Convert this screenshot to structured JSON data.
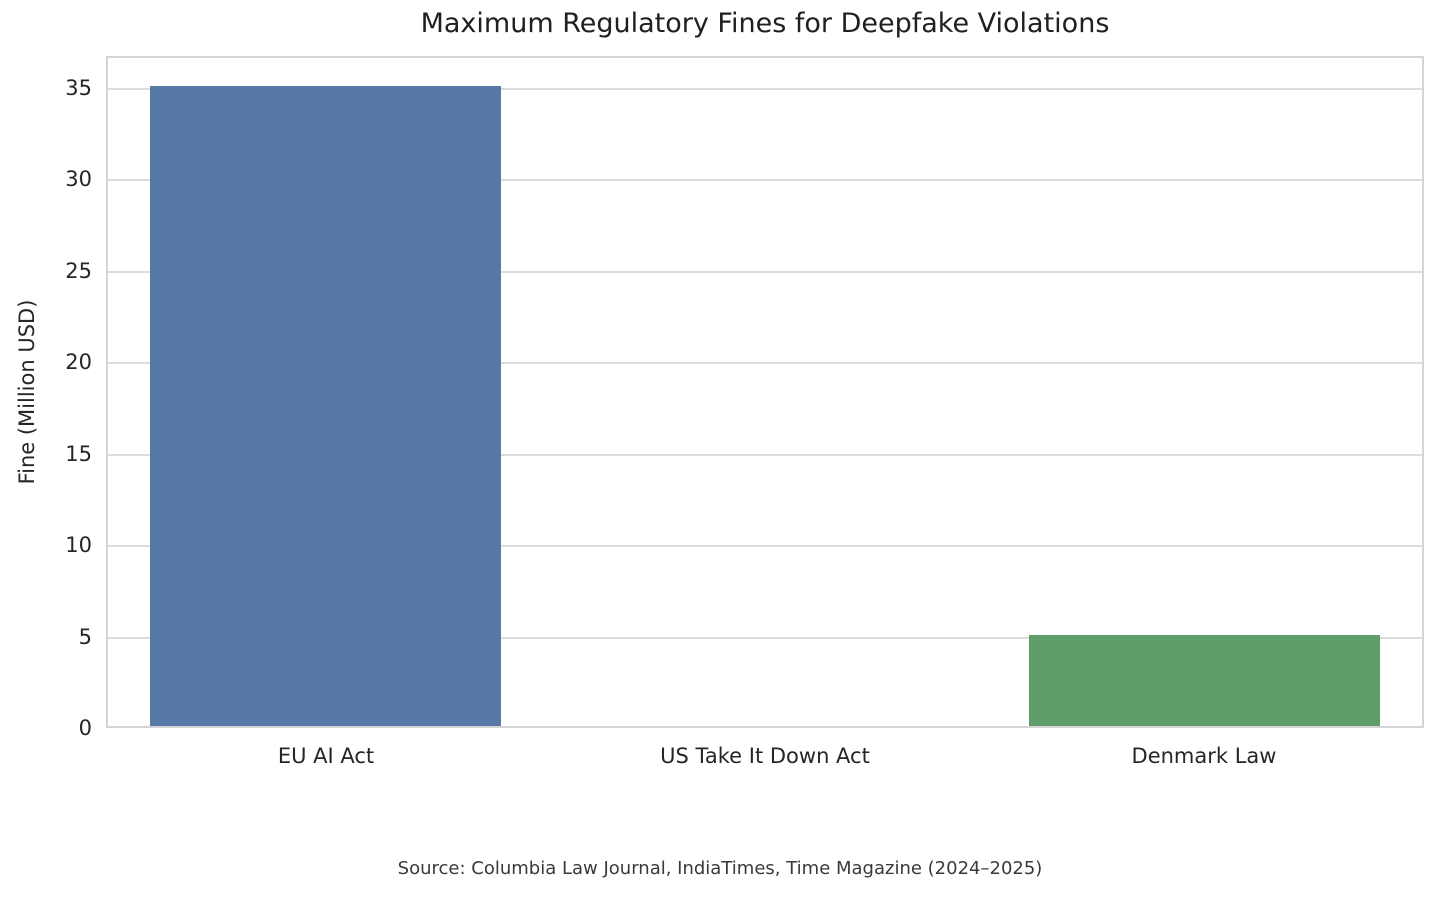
{
  "chart_data": {
    "type": "bar",
    "title": "Maximum Regulatory Fines for Deepfake Violations",
    "ylabel": "Fine (Million USD)",
    "xlabel": "",
    "categories": [
      "EU AI Act",
      "US Take It Down Act",
      "Denmark Law"
    ],
    "values": [
      35,
      0,
      5
    ],
    "bar_colors": [
      "#5878a8",
      null,
      "#5f9e6b"
    ],
    "yticks": [
      0,
      5,
      10,
      15,
      20,
      25,
      30,
      35
    ],
    "ylim": [
      0,
      36.75
    ],
    "grid": "horizontal",
    "legend_position": "none",
    "source_note": "Source: Columbia Law Journal, IndiaTimes, Time Magazine (2024–2025)"
  },
  "style": {
    "background": "#ffffff",
    "bar_blue": "#5878a8",
    "bar_green": "#5f9e6b",
    "grid_color": "#dcdcdc",
    "spine_color": "#d4d4d4",
    "text_color": "#262626",
    "source_text_color": "#3a3a3a"
  }
}
